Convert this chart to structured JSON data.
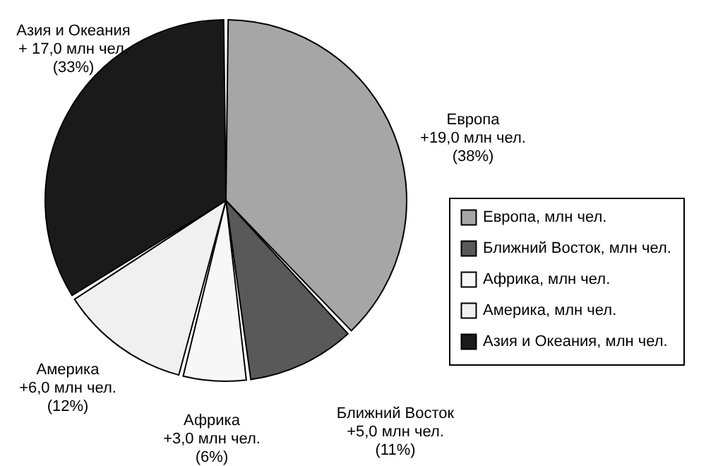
{
  "chart_data": {
    "type": "pie",
    "categories": [
      "Европа, млн чел.",
      "Ближний Восток, млн чел.",
      "Африка, млн чел.",
      "Америка, млн чел.",
      "Азия и Океания, млн чел."
    ],
    "values": [
      19.0,
      5.0,
      3.0,
      6.0,
      17.0
    ],
    "colors": [
      "#a6a6a6",
      "#595959",
      "#f7f7f7",
      "#f0f0f0",
      "#1a1a1a"
    ],
    "value_labels": [
      "Европа\n+19,0 млн чел.\n(38%)",
      "Ближний Восток\n+5,0 млн чел.\n(11%)",
      "Африка\n+3,0 млн чел.\n(6%)",
      "Америка\n+6,0 млн чел.\n(12%)",
      "Азия и Океания\n+ 17,0 млн чел.\n(33%)"
    ],
    "legend": "right"
  }
}
